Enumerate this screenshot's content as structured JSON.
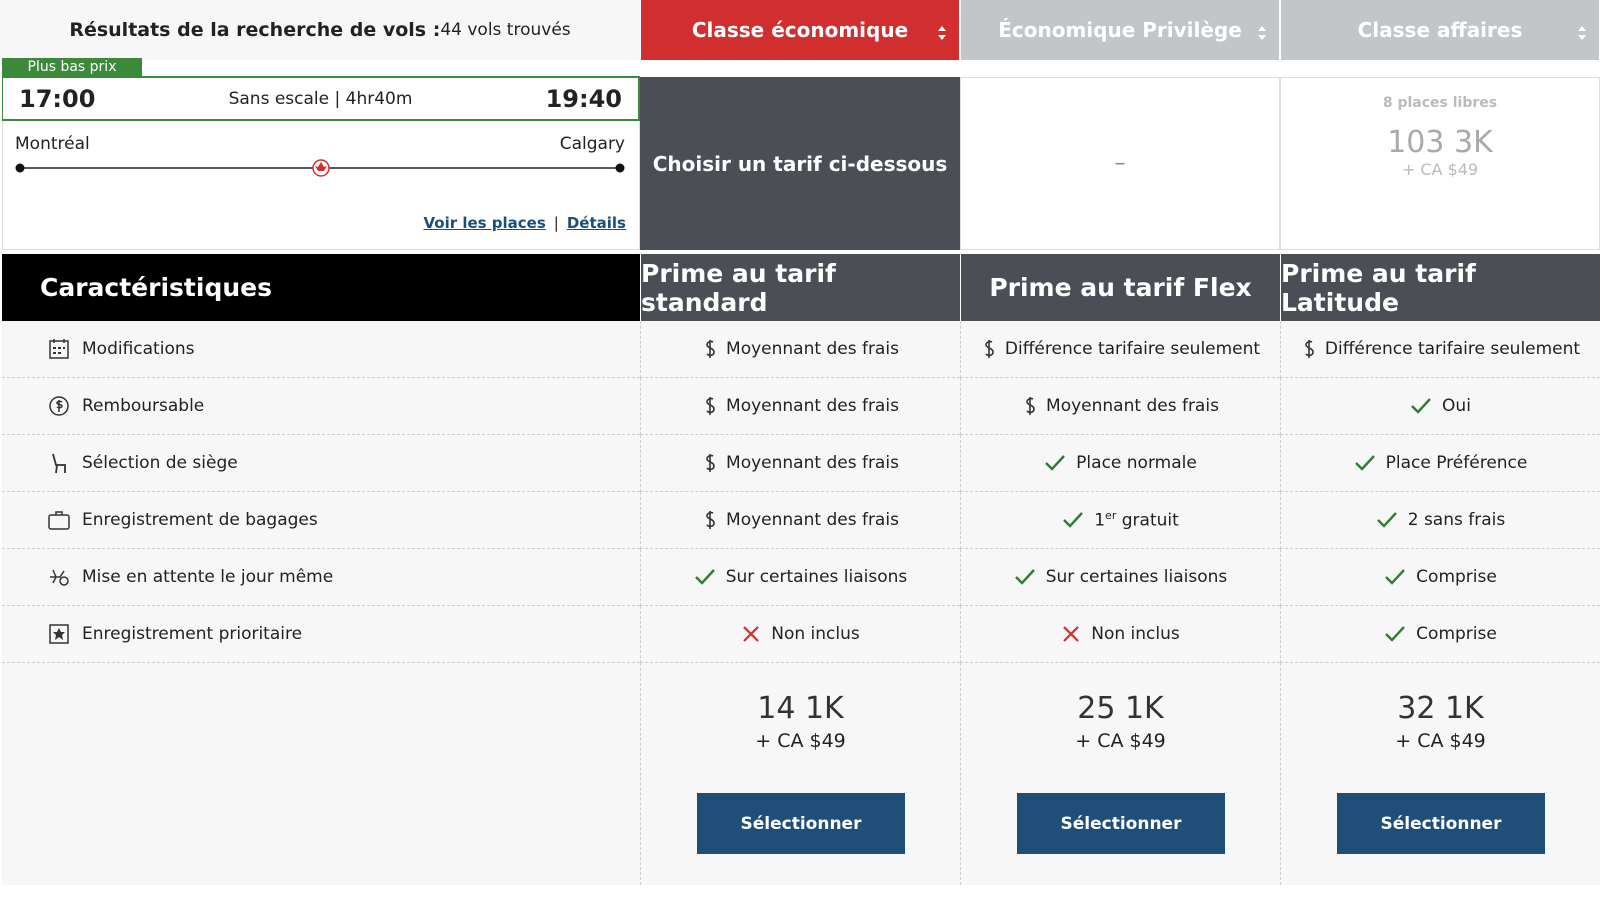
{
  "header": {
    "title": "Résultats de la recherche de vols :",
    "count": "44 vols trouvés",
    "cabins": [
      "Classe économique",
      "Économique Privilège",
      "Classe affaires"
    ]
  },
  "flight": {
    "badge": "Plus bas prix",
    "depart": "17:00",
    "info": "Sans escale | 4hr40m",
    "arrive": "19:40",
    "origin": "Montréal",
    "destination": "Calgary",
    "links": [
      "Voir les places",
      "Détails"
    ],
    "link_separator": "|"
  },
  "cabin_cells": [
    {
      "text": "Choisir un tarif ci-dessous"
    },
    {
      "text": "–"
    },
    {
      "seats": "8 places libres",
      "points": "103 3K",
      "cash": "+ CA $49"
    }
  ],
  "features": {
    "heading": "Caractéristiques",
    "fares": [
      "Prime au tarif standard",
      "Prime au tarif Flex",
      "Prime au tarif Latitude"
    ],
    "rows": [
      {
        "label": "Modifications",
        "cells": [
          {
            "status": "dollar",
            "text": "Moyennant des frais"
          },
          {
            "status": "dollar",
            "text": "Différence tarifaire seulement"
          },
          {
            "status": "dollar",
            "text": "Différence tarifaire seulement"
          }
        ]
      },
      {
        "label": "Remboursable",
        "cells": [
          {
            "status": "dollar",
            "text": "Moyennant des frais"
          },
          {
            "status": "dollar",
            "text": "Moyennant des frais"
          },
          {
            "status": "check",
            "text": "Oui"
          }
        ]
      },
      {
        "label": "Sélection de siège",
        "cells": [
          {
            "status": "dollar",
            "text": "Moyennant des frais"
          },
          {
            "status": "check",
            "text": "Place normale"
          },
          {
            "status": "check",
            "text": "Place Préférence"
          }
        ]
      },
      {
        "label": "Enregistrement de bagages",
        "cells": [
          {
            "status": "dollar",
            "text": "Moyennant des frais"
          },
          {
            "status": "check",
            "text": "1",
            "sup": "er",
            "text_after": " gratuit"
          },
          {
            "status": "check",
            "text": "2 sans frais"
          }
        ]
      },
      {
        "label": "Mise en attente le jour même",
        "cells": [
          {
            "status": "check",
            "text": "Sur certaines liaisons"
          },
          {
            "status": "check",
            "text": "Sur certaines liaisons"
          },
          {
            "status": "check",
            "text": "Comprise"
          }
        ]
      },
      {
        "label": "Enregistrement prioritaire",
        "cells": [
          {
            "status": "cross",
            "text": "Non inclus"
          },
          {
            "status": "cross",
            "text": "Non inclus"
          },
          {
            "status": "check",
            "text": "Comprise"
          }
        ]
      }
    ]
  },
  "prices": [
    {
      "points": "14 1K",
      "cash": "+ CA $49",
      "button": "Sélectionner"
    },
    {
      "points": "25 1K",
      "cash": "+ CA $49",
      "button": "Sélectionner"
    },
    {
      "points": "32 1K",
      "cash": "+ CA $49",
      "button": "Sélectionner"
    }
  ]
}
